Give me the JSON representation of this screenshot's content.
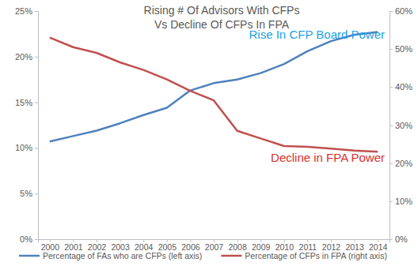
{
  "chart_data": {
    "type": "line",
    "title": [
      "Rising # Of Advisors With CFPs",
      "Vs Decline Of CFPs In FPA"
    ],
    "categories": [
      "2000",
      "2001",
      "2002",
      "2003",
      "2004",
      "2005",
      "2006",
      "2007",
      "2008",
      "2009",
      "2010",
      "2011",
      "2012",
      "2013",
      "2014"
    ],
    "series": [
      {
        "name": "Percentage of FAs who are CFPs (left axis)",
        "color": "#4f81bd",
        "values": [
          10.7,
          11.3,
          11.9,
          12.7,
          13.6,
          14.4,
          16.3,
          17.1,
          17.5,
          18.2,
          19.2,
          20.6,
          21.7,
          22.4,
          22.7
        ]
      },
      {
        "name": "Percentage of CFPs in FPA (right axis)",
        "color": "#c0504d",
        "axis": "y2",
        "values": [
          53,
          50.5,
          49,
          46.5,
          44.5,
          42,
          39,
          36.5,
          28.5,
          26.5,
          24.5,
          24.3,
          23.8,
          23.3,
          23
        ]
      }
    ],
    "ylim": [
      0,
      25
    ],
    "yticks": [
      {
        "value": 0,
        "label": "0%"
      },
      {
        "value": 5,
        "label": "5%"
      },
      {
        "value": 10,
        "label": "10%"
      },
      {
        "value": 15,
        "label": "15%"
      },
      {
        "value": 20,
        "label": "20%"
      },
      {
        "value": 25,
        "label": "25%"
      }
    ],
    "y2lim": [
      0,
      60
    ],
    "y2ticks": [
      {
        "value": 0,
        "label": "0%"
      },
      {
        "value": 10,
        "label": "10%"
      },
      {
        "value": 20,
        "label": "20%"
      },
      {
        "value": 30,
        "label": "30%"
      },
      {
        "value": 40,
        "label": "40%"
      },
      {
        "value": 50,
        "label": "50%"
      },
      {
        "value": 60,
        "label": "60%"
      }
    ],
    "annotations": [
      {
        "text": "Rise In CFP Board Power",
        "color": "#1ba1e2"
      },
      {
        "text": "Decline in FPA Power",
        "color": "#d7312f"
      }
    ],
    "grid": false,
    "legend": "bottom"
  }
}
